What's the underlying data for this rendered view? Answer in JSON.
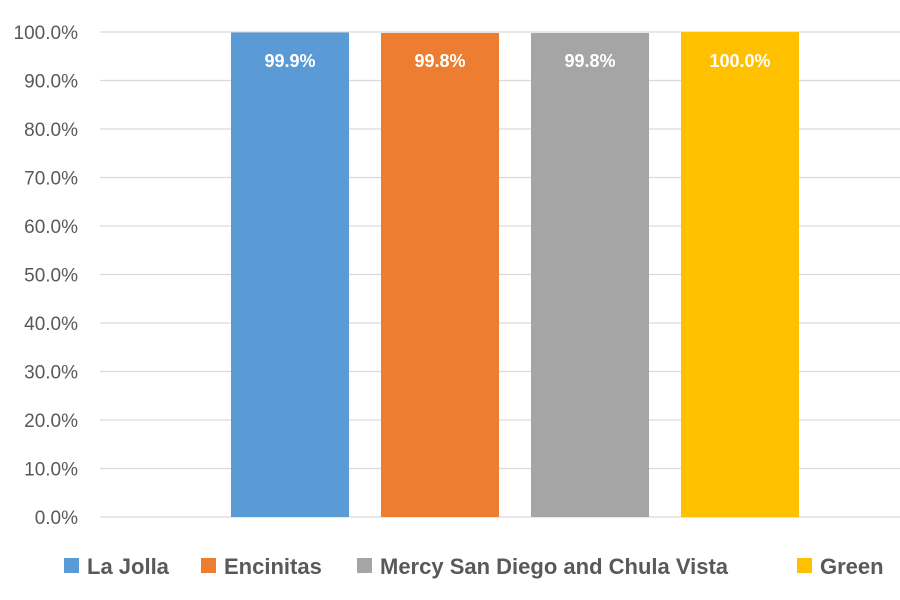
{
  "chart_data": {
    "type": "bar",
    "title": "",
    "xlabel": "",
    "ylabel": "",
    "ylim": [
      0,
      100
    ],
    "y_ticks": [
      "0.0%",
      "10.0%",
      "20.0%",
      "30.0%",
      "40.0%",
      "50.0%",
      "60.0%",
      "70.0%",
      "80.0%",
      "90.0%",
      "100.0%"
    ],
    "grid": true,
    "legend_position": "bottom",
    "series": [
      {
        "name": "La Jolla",
        "value": 99.9,
        "label": "99.9%",
        "color": "#5B9BD5"
      },
      {
        "name": "Encinitas",
        "value": 99.8,
        "label": "99.8%",
        "color": "#ED7D31"
      },
      {
        "name": "Mercy San Diego and Chula Vista",
        "value": 99.8,
        "label": "99.8%",
        "color": "#A5A5A5"
      },
      {
        "name": "Green",
        "value": 100.0,
        "label": "100.0%",
        "color": "#FFC000"
      }
    ]
  }
}
